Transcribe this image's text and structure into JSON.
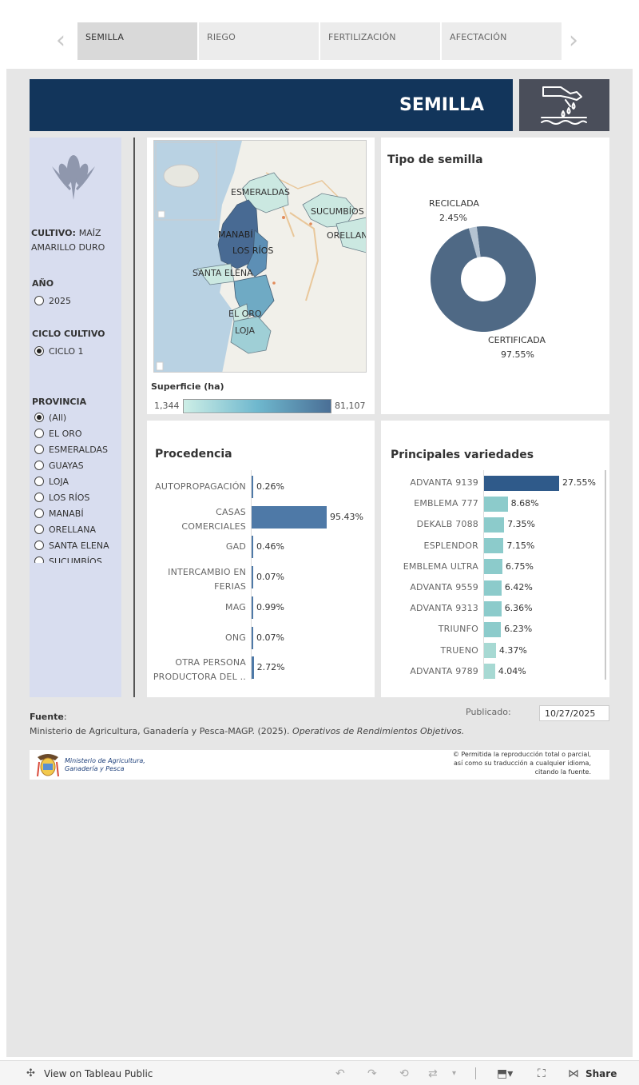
{
  "tabs": {
    "prev_glyph": "‹",
    "next_glyph": "›",
    "items": [
      {
        "label": "SEMILLA",
        "active": true
      },
      {
        "label": "RIEGO",
        "active": false
      },
      {
        "label": "FERTILIZACIÓN",
        "active": false
      },
      {
        "label": "AFECTACIÓN",
        "active": false
      }
    ]
  },
  "banner": {
    "title": "SEMILLA",
    "icon": "seed-hand-icon",
    "color": "#12355b"
  },
  "filters": {
    "cultivo_label": "CULTIVO:",
    "cultivo_value": "MAÍZ AMARILLO DURO",
    "anio_label": "AÑO",
    "anio_options": [
      {
        "label": "2025",
        "checked": false
      }
    ],
    "ciclo_label": "CICLO CULTIVO",
    "ciclo_options": [
      {
        "label": "CICLO 1",
        "checked": true
      }
    ],
    "provincia_label": "PROVINCIA",
    "provincia_options": [
      {
        "label": "(All)",
        "checked": true
      },
      {
        "label": "EL ORO",
        "checked": false
      },
      {
        "label": "ESMERALDAS",
        "checked": false
      },
      {
        "label": "GUAYAS",
        "checked": false
      },
      {
        "label": "LOJA",
        "checked": false
      },
      {
        "label": "LOS RÍOS",
        "checked": false
      },
      {
        "label": "MANABÍ",
        "checked": false
      },
      {
        "label": "ORELLANA",
        "checked": false
      },
      {
        "label": "SANTA ELENA",
        "checked": false
      },
      {
        "label": "SUCUMBÍOS",
        "checked": false
      }
    ]
  },
  "map": {
    "labels": [
      "ESMERALDAS",
      "SUCUMBÍOS",
      "MANABÍ",
      "ORELLAN",
      "LOS RÍOS",
      "SANTA ELENA",
      "EL ORO",
      "LOJA"
    ],
    "legend_title": "Superficie (ha)",
    "legend_min": "1,344",
    "legend_max": "81,107"
  },
  "chart_data": [
    {
      "type": "pie",
      "title": "Tipo de semilla",
      "categories": [
        "CERTIFICADA",
        "RECICLADA"
      ],
      "values": [
        97.55,
        2.45
      ],
      "data_labels": [
        "97.55%",
        "2.45%"
      ],
      "colors": [
        "#4f6985",
        "#b4c3d2"
      ]
    },
    {
      "type": "bar",
      "title": "Procedencia",
      "categories": [
        "AUTOPROPAGACIÓN",
        "CASAS COMERCIALES",
        "GAD",
        "INTERCAMBIO EN FERIAS",
        "MAG",
        "ONG",
        "OTRA PERSONA PRODUCTORA DEL .."
      ],
      "values": [
        0.26,
        95.43,
        0.46,
        0.07,
        0.99,
        0.07,
        2.72
      ],
      "data_labels": [
        "0.26%",
        "95.43%",
        "0.46%",
        "0.07%",
        "0.99%",
        "0.07%",
        "2.72%"
      ],
      "color": "#4e79a7"
    },
    {
      "type": "bar",
      "title": "Principales variedades",
      "categories": [
        "ADVANTA 9139",
        "EMBLEMA 777",
        "DEKALB 7088",
        "ESPLENDOR",
        "EMBLEMA ULTRA",
        "ADVANTA 9559",
        "ADVANTA 9313",
        "TRIUNFO",
        "TRUENO",
        "ADVANTA 9789"
      ],
      "values": [
        27.55,
        8.68,
        7.35,
        7.15,
        6.75,
        6.42,
        6.36,
        6.23,
        4.37,
        4.04
      ],
      "data_labels": [
        "27.55%",
        "8.68%",
        "7.35%",
        "7.15%",
        "6.75%",
        "6.42%",
        "6.36%",
        "6.23%",
        "4.37%",
        "4.04%"
      ],
      "colors": [
        "#2f5a8a",
        "#8ccbcb",
        "#a7d9d3"
      ]
    }
  ],
  "footer": {
    "fuente_label": "Fuente",
    "fuente_colon": ":",
    "fuente_text": "Ministerio de Agricultura, Ganadería y Pesca-MAGP. (2025). ",
    "fuente_italic": "Operativos de Rendimientos Objetivos.",
    "publicado_label": "Publicado:",
    "publicado_value": "10/27/2025",
    "ministry_line1": "Ministerio de Agricultura,",
    "ministry_line2": "Ganadería y Pesca",
    "copyright_line1": "© Permitida la reproducción total o parcial,",
    "copyright_line2": "así como su traducción a cualquier idioma,",
    "copyright_line3": "citando la fuente."
  },
  "toolbar": {
    "view_label": "View on Tableau Public",
    "share_label": "Share"
  }
}
